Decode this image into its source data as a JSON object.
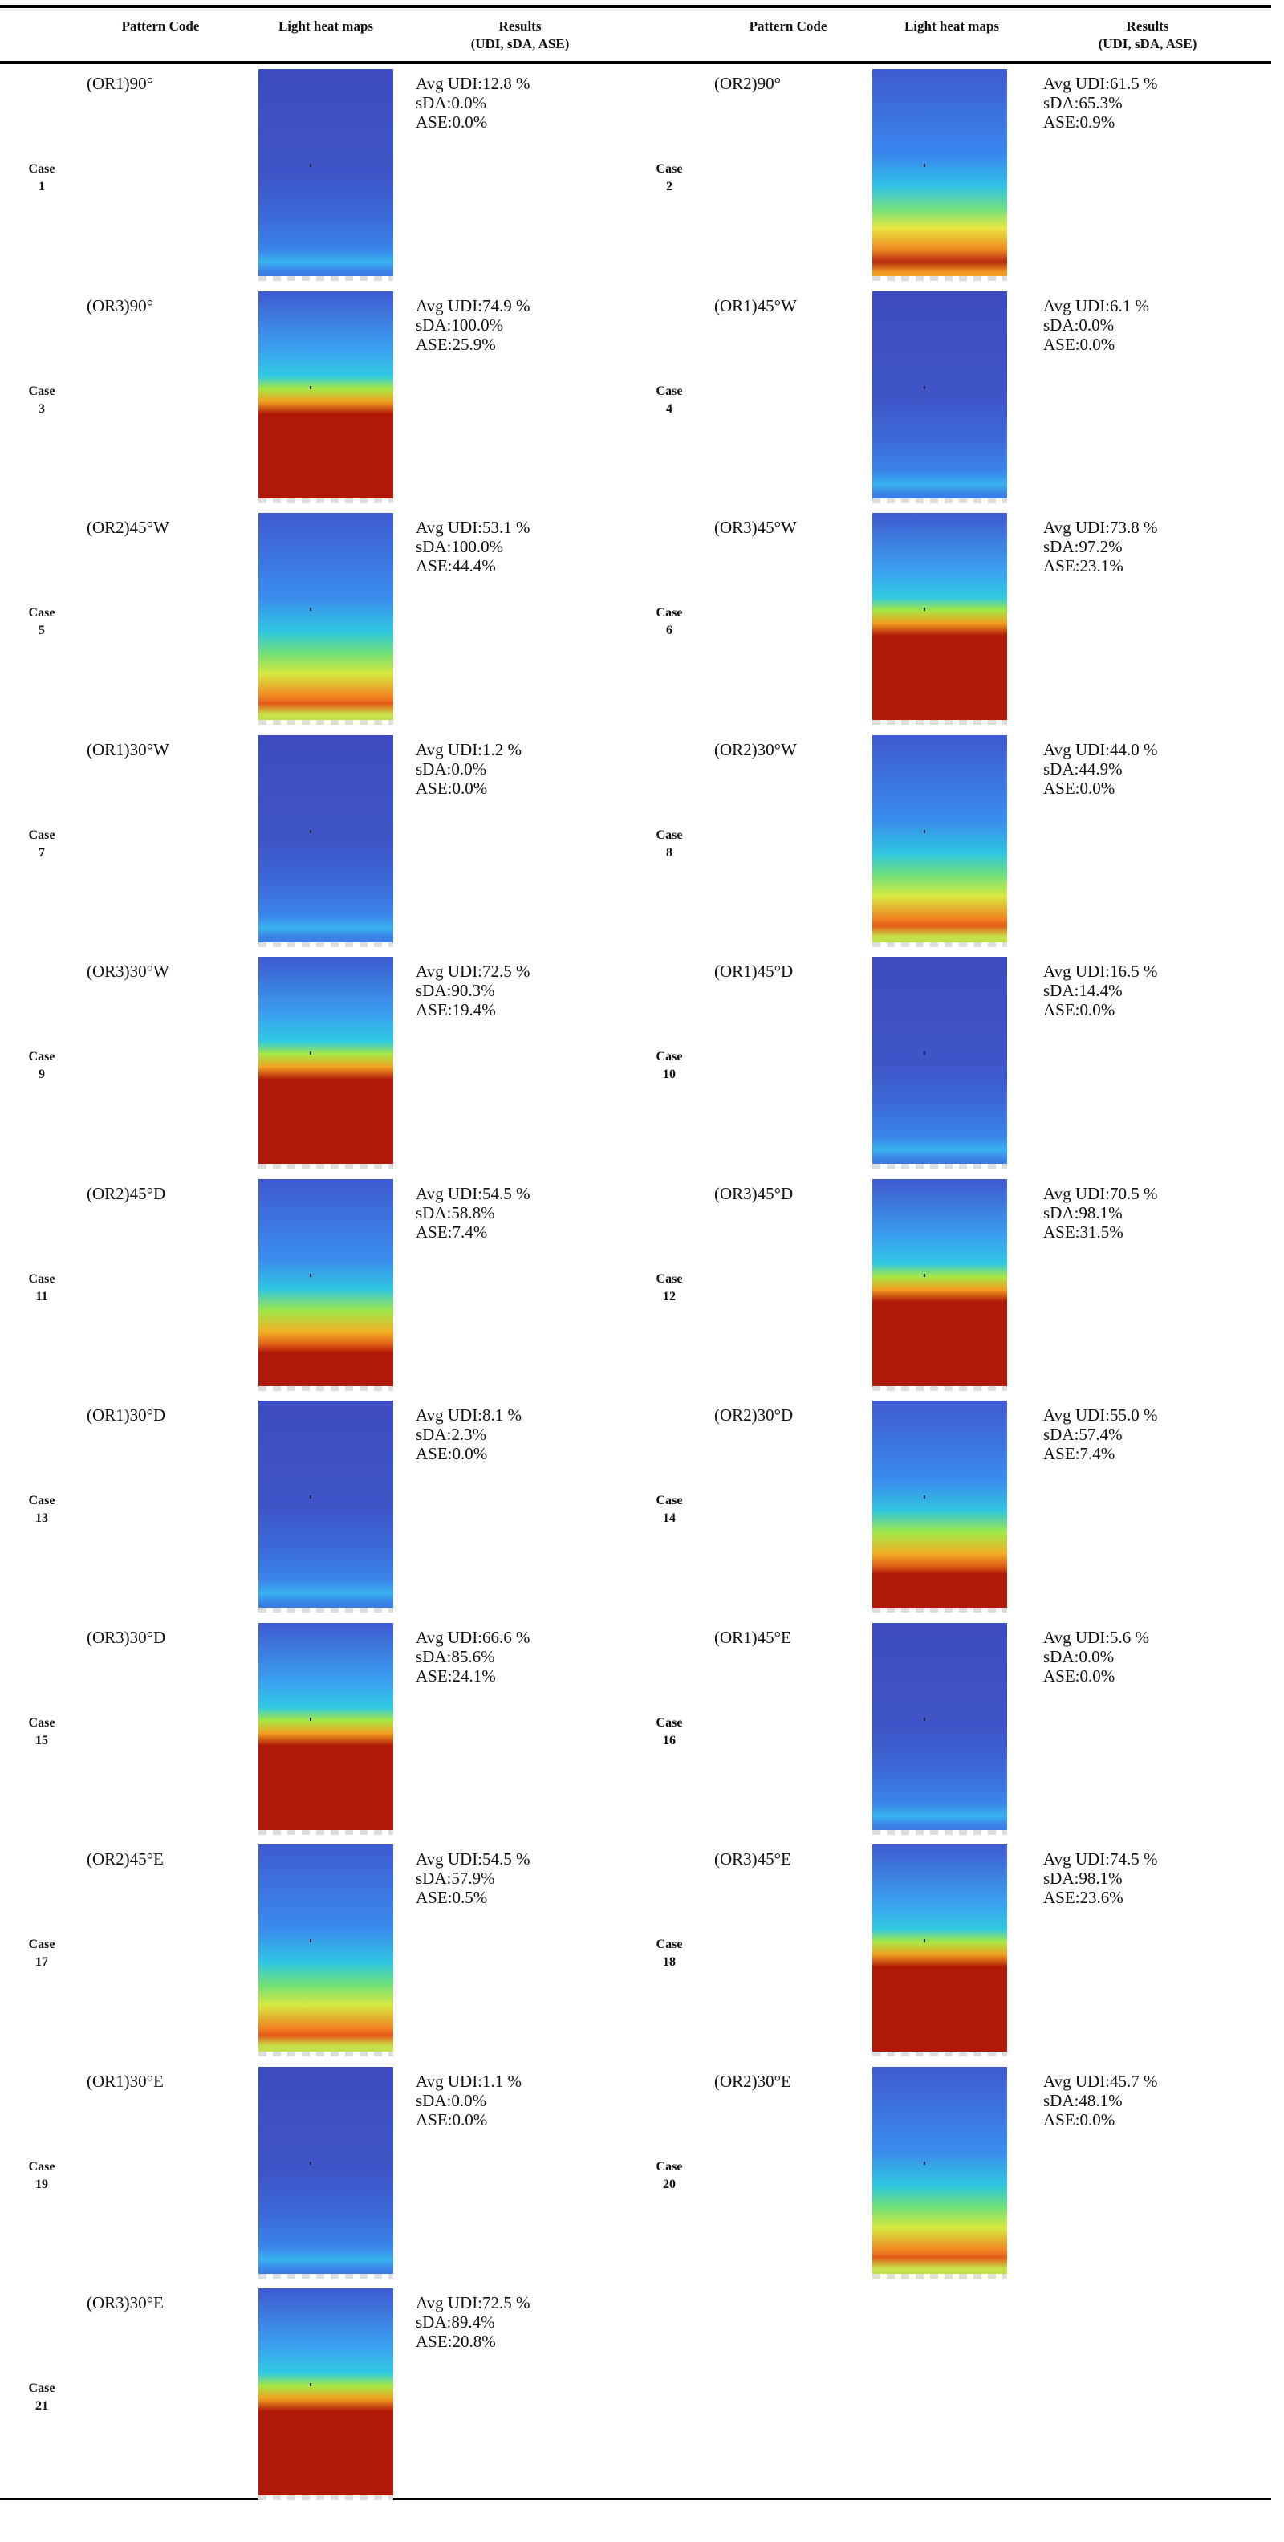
{
  "header": {
    "left": {
      "pattern_code": "Pattern Code",
      "heat_maps": "Light heat maps",
      "results": "Results",
      "results_sub": "(UDI, sDA, ASE)"
    },
    "right": {
      "pattern_code": "Pattern Code",
      "heat_maps": "Light heat maps",
      "results": "Results",
      "results_sub": "(UDI, sDA, ASE)"
    }
  },
  "case_label": "Case",
  "cases": [
    {
      "num": "1",
      "code": "(OR1)90°",
      "udi": "Avg UDI:12.8 %",
      "sda": "sDA:0.0%",
      "ase": "ASE:0.0%"
    },
    {
      "num": "2",
      "code": "(OR2)90°",
      "udi": "Avg UDI:61.5 %",
      "sda": "sDA:65.3%",
      "ase": "ASE:0.9%"
    },
    {
      "num": "3",
      "code": "(OR3)90°",
      "udi": "Avg UDI:74.9 %",
      "sda": "sDA:100.0%",
      "ase": "ASE:25.9%"
    },
    {
      "num": "4",
      "code": "(OR1)45°W",
      "udi": "Avg UDI:6.1 %",
      "sda": "sDA:0.0%",
      "ase": "ASE:0.0%"
    },
    {
      "num": "5",
      "code": "(OR2)45°W",
      "udi": "Avg UDI:53.1 %",
      "sda": "sDA:100.0%",
      "ase": "ASE:44.4%"
    },
    {
      "num": "6",
      "code": "(OR3)45°W",
      "udi": "Avg UDI:73.8 %",
      "sda": "sDA:97.2%",
      "ase": "ASE:23.1%"
    },
    {
      "num": "7",
      "code": "(OR1)30°W",
      "udi": "Avg UDI:1.2 %",
      "sda": "sDA:0.0%",
      "ase": "ASE:0.0%"
    },
    {
      "num": "8",
      "code": "(OR2)30°W",
      "udi": "Avg UDI:44.0 %",
      "sda": "sDA:44.9%",
      "ase": "ASE:0.0%"
    },
    {
      "num": "9",
      "code": "(OR3)30°W",
      "udi": "Avg UDI:72.5 %",
      "sda": "sDA:90.3%",
      "ase": "ASE:19.4%"
    },
    {
      "num": "10",
      "code": "(OR1)45°D",
      "udi": "Avg UDI:16.5 %",
      "sda": "sDA:14.4%",
      "ase": "ASE:0.0%"
    },
    {
      "num": "11",
      "code": "(OR2)45°D",
      "udi": "Avg UDI:54.5 %",
      "sda": "sDA:58.8%",
      "ase": "ASE:7.4%"
    },
    {
      "num": "12",
      "code": "(OR3)45°D",
      "udi": "Avg UDI:70.5 %",
      "sda": "sDA:98.1%",
      "ase": "ASE:31.5%"
    },
    {
      "num": "13",
      "code": "(OR1)30°D",
      "udi": "Avg UDI:8.1 %",
      "sda": "sDA:2.3%",
      "ase": "ASE:0.0%"
    },
    {
      "num": "14",
      "code": "(OR2)30°D",
      "udi": "Avg UDI:55.0 %",
      "sda": "sDA:57.4%",
      "ase": "ASE:7.4%"
    },
    {
      "num": "15",
      "code": "(OR3)30°D",
      "udi": "Avg UDI:66.6 %",
      "sda": "sDA:85.6%",
      "ase": "ASE:24.1%"
    },
    {
      "num": "16",
      "code": "(OR1)45°E",
      "udi": "Avg UDI:5.6 %",
      "sda": "sDA:0.0%",
      "ase": "ASE:0.0%"
    },
    {
      "num": "17",
      "code": "(OR2)45°E",
      "udi": "Avg UDI:54.5 %",
      "sda": "sDA:57.9%",
      "ase": "ASE:0.5%"
    },
    {
      "num": "18",
      "code": "(OR3)45°E",
      "udi": "Avg UDI:74.5 %",
      "sda": "sDA:98.1%",
      "ase": "ASE:23.6%"
    },
    {
      "num": "19",
      "code": "(OR1)30°E",
      "udi": "Avg UDI:1.1 %",
      "sda": "sDA:0.0%",
      "ase": "ASE:0.0%"
    },
    {
      "num": "20",
      "code": "(OR2)30°E",
      "udi": "Avg UDI:45.7 %",
      "sda": "sDA:48.1%",
      "ase": "ASE:0.0%"
    },
    {
      "num": "21",
      "code": "(OR3)30°E",
      "udi": "Avg UDI:72.5 %",
      "sda": "sDA:89.4%",
      "ase": "ASE:20.8%"
    }
  ]
}
